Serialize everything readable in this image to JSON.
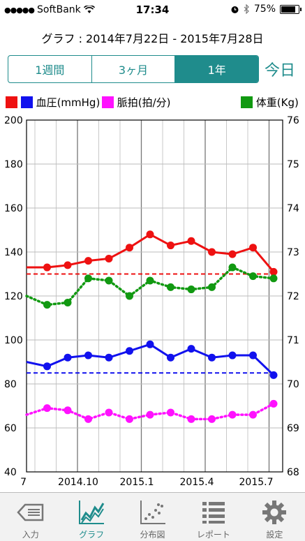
{
  "status_bar": {
    "signal_dots": "●●●●●",
    "carrier": "SoftBank",
    "time": "17:34",
    "battery_percent": "75%",
    "battery_level": 0.75
  },
  "header": {
    "range_title": "グラフ : 2014年7月22日 - 2015年7月28日"
  },
  "segments": [
    {
      "label": "1週間",
      "active": false
    },
    {
      "label": "3ヶ月",
      "active": false
    },
    {
      "label": "1年",
      "active": true
    }
  ],
  "today_label": "今日",
  "legend": {
    "blood_pressure": "血圧(mmHg)",
    "pulse": "脈拍(拍/分)",
    "weight": "体重(Kg)"
  },
  "colors": {
    "accent": "#1f8c8c",
    "systolic": "#ee1111",
    "diastolic": "#1111ee",
    "pulse": "#ff11ff",
    "weight": "#119911"
  },
  "chart_data": {
    "type": "line",
    "x_tick_labels": [
      "7",
      "2014.10",
      "2015.1",
      "2015.4",
      "2015.7"
    ],
    "y_left": {
      "ticks": [
        "40",
        "60",
        "80",
        "100",
        "120",
        "140",
        "160",
        "180",
        "200"
      ],
      "range": [
        40,
        200
      ]
    },
    "y_right": {
      "ticks": [
        "68",
        "69",
        "70",
        "71",
        "72",
        "73",
        "74",
        "75",
        "76"
      ],
      "range": [
        68,
        76
      ]
    },
    "series": [
      {
        "name": "血圧(mmHg)",
        "role": "systolic",
        "axis": "left",
        "style": "solid",
        "values": [
          133,
          133,
          134,
          136,
          137,
          142,
          148,
          143,
          145,
          140,
          139,
          142,
          131
        ],
        "target": 130
      },
      {
        "name": "血圧(mmHg)",
        "role": "diastolic",
        "axis": "left",
        "style": "solid",
        "values": [
          90,
          88,
          92,
          93,
          92,
          95,
          98,
          92,
          96,
          92,
          93,
          93,
          84
        ],
        "target": 85
      },
      {
        "name": "脈拍(拍/分)",
        "role": "pulse",
        "axis": "left",
        "style": "dotted",
        "values": [
          66,
          69,
          68,
          64,
          67,
          64,
          66,
          67,
          64,
          64,
          66,
          66,
          71
        ]
      },
      {
        "name": "体重(Kg)",
        "role": "weight",
        "axis": "right",
        "style": "dotted",
        "values": [
          72.0,
          71.8,
          71.85,
          72.4,
          72.35,
          72.0,
          72.35,
          72.2,
          72.15,
          72.2,
          72.65,
          72.45,
          72.4
        ]
      }
    ],
    "grid": true
  },
  "tabs": [
    {
      "label": "入力",
      "icon": "input-icon",
      "active": false
    },
    {
      "label": "グラフ",
      "icon": "graph-icon",
      "active": true
    },
    {
      "label": "分布図",
      "icon": "scatter-icon",
      "active": false
    },
    {
      "label": "レポート",
      "icon": "report-icon",
      "active": false
    },
    {
      "label": "設定",
      "icon": "gear-icon",
      "active": false
    }
  ]
}
